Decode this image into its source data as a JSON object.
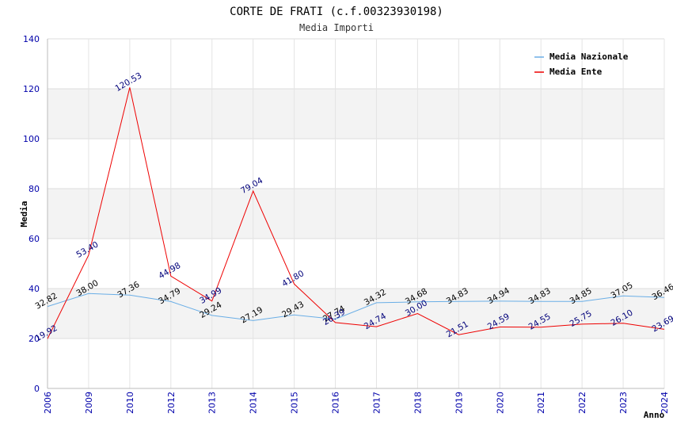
{
  "chart_data": {
    "type": "line",
    "title": "CORTE DE FRATI (c.f.00323930198)",
    "subtitle": "Media Importi",
    "xlabel": "Anno",
    "ylabel": "Media",
    "ylim": [
      0,
      140
    ],
    "yticks": [
      "0",
      "20",
      "40",
      "60",
      "80",
      "100",
      "120",
      "140"
    ],
    "categories": [
      "2006",
      "2009",
      "2010",
      "2012",
      "2013",
      "2014",
      "2015",
      "2016",
      "2017",
      "2018",
      "2019",
      "2020",
      "2021",
      "2022",
      "2023",
      "2024"
    ],
    "legend_position": "top-right",
    "series": [
      {
        "name": "Media Nazionale",
        "color": "#6aaee6",
        "label_color": "#000000",
        "values": [
          32.82,
          38.0,
          37.36,
          34.79,
          29.24,
          27.19,
          29.43,
          27.74,
          34.32,
          34.68,
          34.83,
          34.94,
          34.83,
          34.85,
          37.05,
          36.46
        ],
        "labels": [
          "32.82",
          "38.00",
          "37.36",
          "34.79",
          "29.24",
          "27.19",
          "29.43",
          "27.74",
          "34.32",
          "34.68",
          "34.83",
          "34.94",
          "34.83",
          "34.85",
          "37.05",
          "36.46"
        ]
      },
      {
        "name": "Media Ente",
        "color": "#ee0000",
        "label_color": "#00007a",
        "values": [
          19.92,
          53.4,
          120.53,
          44.98,
          34.99,
          79.04,
          41.8,
          26.39,
          24.74,
          30.0,
          21.51,
          24.59,
          24.55,
          25.75,
          26.1,
          23.69
        ],
        "labels": [
          "19.92",
          "53.40",
          "120.53",
          "44.98",
          "34.99",
          "79.04",
          "41.80",
          "26.39",
          "24.74",
          "30.00",
          "21.51",
          "24.59",
          "24.55",
          "25.75",
          "26.10",
          "23.69"
        ]
      }
    ]
  }
}
